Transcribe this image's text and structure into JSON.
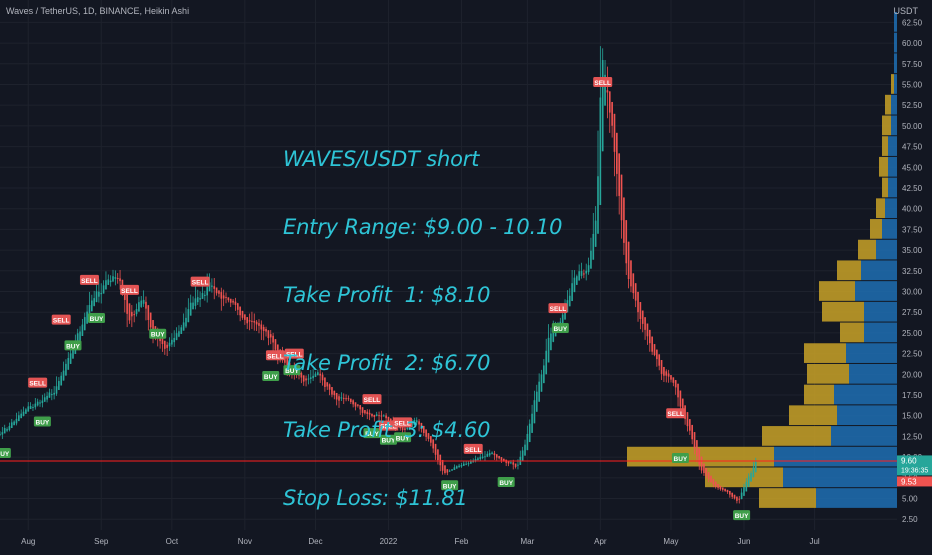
{
  "header": {
    "title": "Waves / TetherUS, 1D, BINANCE, Heikin Ashi",
    "unit": "USDT"
  },
  "annotation": {
    "lines": [
      "WAVES/USDT short",
      "Entry Range: $9.00 - 10.10",
      "Take Profit  1: $8.10",
      "Take Profit  2: $6.70",
      "Take Profit  3: $4.60",
      "Stop Loss: $11.81"
    ]
  },
  "colors": {
    "background": "#131722",
    "up": "#26a69a",
    "down": "#ef5350",
    "grid": "#1e222d",
    "text": "#b2b5be",
    "annotation": "#2ec4d6",
    "hline": "#ff1f1f",
    "vp_up": "#1f6eb3",
    "vp_down": "#c9a227"
  },
  "chart_data": {
    "type": "candlestick",
    "style": "Heikin Ashi",
    "symbol": "Waves / TetherUS",
    "interval": "1D",
    "exchange": "BINANCE",
    "y_axis": {
      "unit": "USDT",
      "scale": "linear",
      "ticks": [
        "62.50",
        "60.00",
        "57.50",
        "55.00",
        "52.50",
        "50.00",
        "47.50",
        "45.00",
        "42.50",
        "40.00",
        "37.50",
        "35.00",
        "32.50",
        "30.00",
        "27.50",
        "25.00",
        "22.50",
        "20.00",
        "17.50",
        "15.00",
        "12.50",
        "10.00",
        "7.50",
        "5.00",
        "2.50"
      ],
      "range": [
        1.2,
        65.2
      ]
    },
    "x_axis": {
      "ticks": [
        "Aug",
        "Sep",
        "Oct",
        "Nov",
        "Dec",
        "2022",
        "Feb",
        "Mar",
        "Apr",
        "May",
        "Jun",
        "Jul"
      ],
      "range": [
        "2021-07-20",
        "2022-08-05"
      ]
    },
    "price_path": [
      [
        "2021-07-20",
        13.0
      ],
      [
        "2021-08-01",
        16.0
      ],
      [
        "2021-08-12",
        18.0
      ],
      [
        "2021-08-18",
        22.0
      ],
      [
        "2021-08-25",
        27.5
      ],
      [
        "2021-09-03",
        31.5
      ],
      [
        "2021-09-08",
        32.0
      ],
      [
        "2021-09-12",
        26.5
      ],
      [
        "2021-09-18",
        29.5
      ],
      [
        "2021-09-22",
        25.0
      ],
      [
        "2021-09-28",
        23.0
      ],
      [
        "2021-10-03",
        25.0
      ],
      [
        "2021-10-10",
        29.0
      ],
      [
        "2021-10-17",
        31.0
      ],
      [
        "2021-10-24",
        28.5
      ],
      [
        "2021-11-01",
        27.0
      ],
      [
        "2021-11-10",
        25.0
      ],
      [
        "2021-11-18",
        21.0
      ],
      [
        "2021-11-25",
        19.5
      ],
      [
        "2021-12-02",
        20.0
      ],
      [
        "2021-12-09",
        17.0
      ],
      [
        "2021-12-16",
        16.5
      ],
      [
        "2021-12-23",
        15.0
      ],
      [
        "2021-12-30",
        15.0
      ],
      [
        "2022-01-06",
        13.0
      ],
      [
        "2022-01-12",
        14.5
      ],
      [
        "2022-01-18",
        12.0
      ],
      [
        "2022-01-24",
        8.0
      ],
      [
        "2022-01-30",
        9.0
      ],
      [
        "2022-02-06",
        9.5
      ],
      [
        "2022-02-13",
        10.5
      ],
      [
        "2022-02-20",
        9.5
      ],
      [
        "2022-02-24",
        8.8
      ],
      [
        "2022-02-28",
        12.0
      ],
      [
        "2022-03-05",
        18.5
      ],
      [
        "2022-03-10",
        24.5
      ],
      [
        "2022-03-15",
        27.0
      ],
      [
        "2022-03-20",
        31.5
      ],
      [
        "2022-03-26",
        33.0
      ],
      [
        "2022-03-30",
        40.0
      ],
      [
        "2022-04-01",
        57.5
      ],
      [
        "2022-04-03",
        55.0
      ],
      [
        "2022-04-07",
        45.0
      ],
      [
        "2022-04-12",
        32.0
      ],
      [
        "2022-04-18",
        26.0
      ],
      [
        "2022-04-25",
        21.0
      ],
      [
        "2022-05-02",
        18.5
      ],
      [
        "2022-05-09",
        12.5
      ],
      [
        "2022-05-13",
        8.5
      ],
      [
        "2022-05-18",
        6.8
      ],
      [
        "2022-05-24",
        5.8
      ],
      [
        "2022-05-29",
        4.6
      ],
      [
        "2022-06-02",
        7.5
      ],
      [
        "2022-06-06",
        9.6
      ]
    ],
    "horizontal_line": 9.53,
    "price_labels": [
      {
        "value": 9.6,
        "text": "9.60",
        "sub": "19:36:35",
        "color": "#26a69a"
      },
      {
        "value": 9.53,
        "text": "9.53",
        "sub": "",
        "color": "#ef5350"
      }
    ],
    "signals": [
      {
        "type": "BUY",
        "date": "2021-07-21",
        "price": 10.5
      },
      {
        "type": "SELL",
        "date": "2021-08-05",
        "price": 19.0
      },
      {
        "type": "BUY",
        "date": "2021-08-07",
        "price": 14.3
      },
      {
        "type": "SELL",
        "date": "2021-08-15",
        "price": 26.6
      },
      {
        "type": "BUY",
        "date": "2021-08-20",
        "price": 23.5
      },
      {
        "type": "SELL",
        "date": "2021-08-27",
        "price": 31.4
      },
      {
        "type": "BUY",
        "date": "2021-08-30",
        "price": 26.8
      },
      {
        "type": "SELL",
        "date": "2021-09-13",
        "price": 30.2
      },
      {
        "type": "BUY",
        "date": "2021-09-25",
        "price": 24.9
      },
      {
        "type": "SELL",
        "date": "2021-10-13",
        "price": 31.2
      },
      {
        "type": "BUY",
        "date": "2021-11-12",
        "price": 19.8
      },
      {
        "type": "SELL",
        "date": "2021-11-14",
        "price": 22.3
      },
      {
        "type": "BUY",
        "date": "2021-11-21",
        "price": 20.5
      },
      {
        "type": "SELL",
        "date": "2021-11-22",
        "price": 22.5
      },
      {
        "type": "SELL",
        "date": "2021-12-25",
        "price": 17.0
      },
      {
        "type": "BUY",
        "date": "2021-12-25",
        "price": 12.9
      },
      {
        "type": "SELL",
        "date": "2022-01-01",
        "price": 13.8
      },
      {
        "type": "BUY",
        "date": "2022-01-01",
        "price": 12.1
      },
      {
        "type": "SELL",
        "date": "2022-01-07",
        "price": 14.2
      },
      {
        "type": "BUY",
        "date": "2022-01-07",
        "price": 12.4
      },
      {
        "type": "BUY",
        "date": "2022-01-27",
        "price": 6.6
      },
      {
        "type": "SELL",
        "date": "2022-02-06",
        "price": 11.0
      },
      {
        "type": "BUY",
        "date": "2022-02-20",
        "price": 7.0
      },
      {
        "type": "SELL",
        "date": "2022-03-14",
        "price": 28.0
      },
      {
        "type": "BUY",
        "date": "2022-03-15",
        "price": 25.6
      },
      {
        "type": "SELL",
        "date": "2022-04-02",
        "price": 55.3
      },
      {
        "type": "SELL",
        "date": "2022-05-03",
        "price": 15.3
      },
      {
        "type": "BUY",
        "date": "2022-05-05",
        "price": 9.9
      },
      {
        "type": "BUY",
        "date": "2022-05-31",
        "price": 3.0
      }
    ],
    "volume_profile": {
      "bin_size": 2.5,
      "note": "horizontal volume-by-price bars anchored to the right edge; up-volume blue, down-volume gold",
      "bins": [
        {
          "low": 3.75,
          "high": 6.25,
          "up": 0.27,
          "down": 0.19
        },
        {
          "low": 6.25,
          "high": 8.75,
          "up": 0.38,
          "down": 0.26
        },
        {
          "low": 8.75,
          "high": 11.25,
          "up": 0.41,
          "down": 0.49
        },
        {
          "low": 11.25,
          "high": 13.75,
          "up": 0.22,
          "down": 0.23
        },
        {
          "low": 13.75,
          "high": 16.25,
          "up": 0.2,
          "down": 0.16
        },
        {
          "low": 16.25,
          "high": 18.75,
          "up": 0.21,
          "down": 0.1
        },
        {
          "low": 18.75,
          "high": 21.25,
          "up": 0.16,
          "down": 0.14
        },
        {
          "low": 21.25,
          "high": 23.75,
          "up": 0.17,
          "down": 0.14
        },
        {
          "low": 23.75,
          "high": 26.25,
          "up": 0.11,
          "down": 0.08
        },
        {
          "low": 26.25,
          "high": 28.75,
          "up": 0.11,
          "down": 0.14
        },
        {
          "low": 28.75,
          "high": 31.25,
          "up": 0.14,
          "down": 0.12
        },
        {
          "low": 31.25,
          "high": 33.75,
          "up": 0.12,
          "down": 0.08
        },
        {
          "low": 33.75,
          "high": 36.25,
          "up": 0.07,
          "down": 0.06
        },
        {
          "low": 36.25,
          "high": 38.75,
          "up": 0.05,
          "down": 0.04
        },
        {
          "low": 38.75,
          "high": 41.25,
          "up": 0.04,
          "down": 0.03
        },
        {
          "low": 41.25,
          "high": 43.75,
          "up": 0.03,
          "down": 0.02
        },
        {
          "low": 43.75,
          "high": 46.25,
          "up": 0.03,
          "down": 0.03
        },
        {
          "low": 46.25,
          "high": 48.75,
          "up": 0.03,
          "down": 0.02
        },
        {
          "low": 48.75,
          "high": 51.25,
          "up": 0.02,
          "down": 0.03
        },
        {
          "low": 51.25,
          "high": 53.75,
          "up": 0.02,
          "down": 0.02
        },
        {
          "low": 53.75,
          "high": 56.25,
          "up": 0.01,
          "down": 0.01
        },
        {
          "low": 56.25,
          "high": 58.75,
          "up": 0.01,
          "down": 0.0
        },
        {
          "low": 58.75,
          "high": 61.25,
          "up": 0.01,
          "down": 0.0
        },
        {
          "low": 61.25,
          "high": 63.75,
          "up": 0.01,
          "down": 0.0
        }
      ]
    }
  }
}
